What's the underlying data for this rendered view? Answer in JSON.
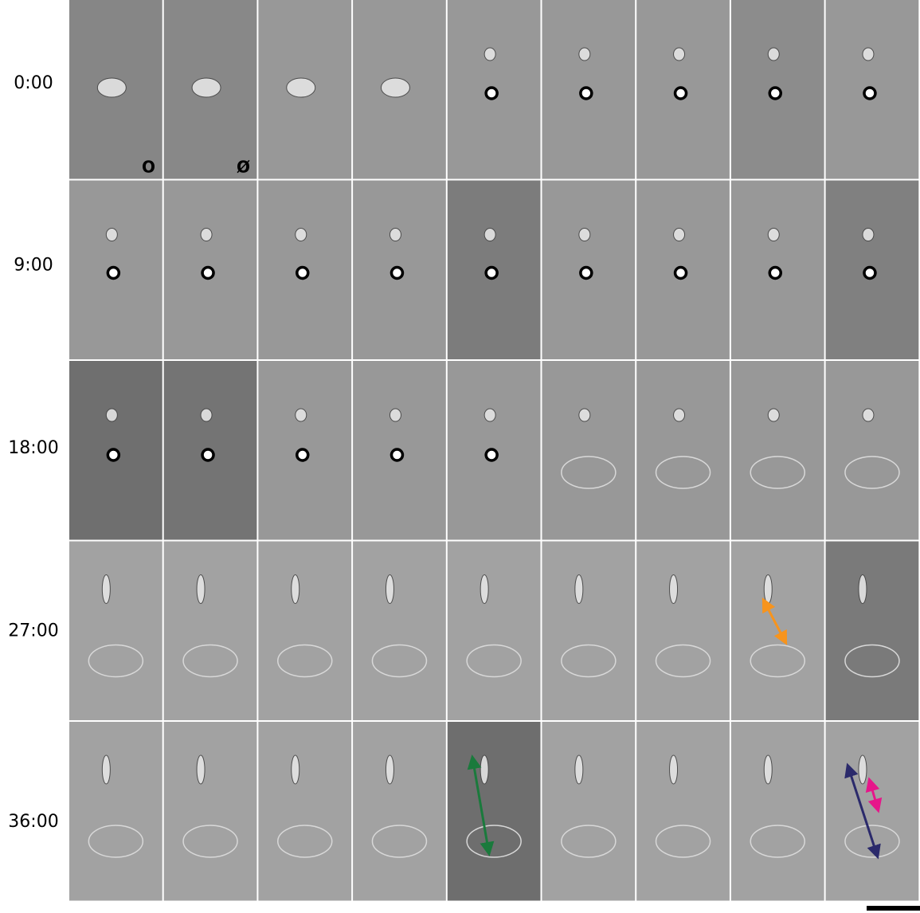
{
  "rows": [
    {
      "time": "0:00"
    },
    {
      "time": "9:00"
    },
    {
      "time": "18:00"
    },
    {
      "time": "27:00"
    },
    {
      "time": "36:00"
    }
  ],
  "annotations": {
    "first_marker": "O",
    "second_marker": "Ø"
  }
}
